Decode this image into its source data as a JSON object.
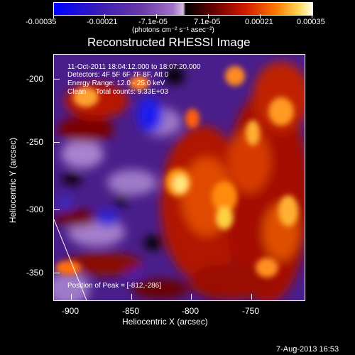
{
  "colorbar": {
    "tick_labels": [
      "-0.00035",
      "-0.00021",
      "-7.1e-05",
      "7.1e-05",
      "0.00021",
      "0.00035"
    ],
    "units_text": "(photons cm⁻² s⁻¹ asec⁻²)"
  },
  "title": "Reconstructed RHESSI Image",
  "info_lines": {
    "time": "11-Oct-2011 18:04:12.000 to 18:07:20.000",
    "detectors": "Detectors: 4F 5F 6F 7F 8F, Att 0",
    "energy": "Energy Range: 12.0 - 25.0 keV",
    "clean": "Clean     Total counts: 9.33E+03"
  },
  "peak_text": "Position of Peak = [-812,-286]",
  "axes": {
    "xlabel": "Heliocentric X (arcsec)",
    "ylabel": "Heliocentric Y (arcsec)",
    "x_ticks": [
      "-900",
      "-850",
      "-800",
      "-750"
    ],
    "y_ticks": [
      "-200",
      "-250",
      "-300",
      "-350"
    ]
  },
  "footer_date": "7-Aug-2013 16:53",
  "colors": {
    "background": "#000000",
    "limb_line": "#ffffff"
  }
}
